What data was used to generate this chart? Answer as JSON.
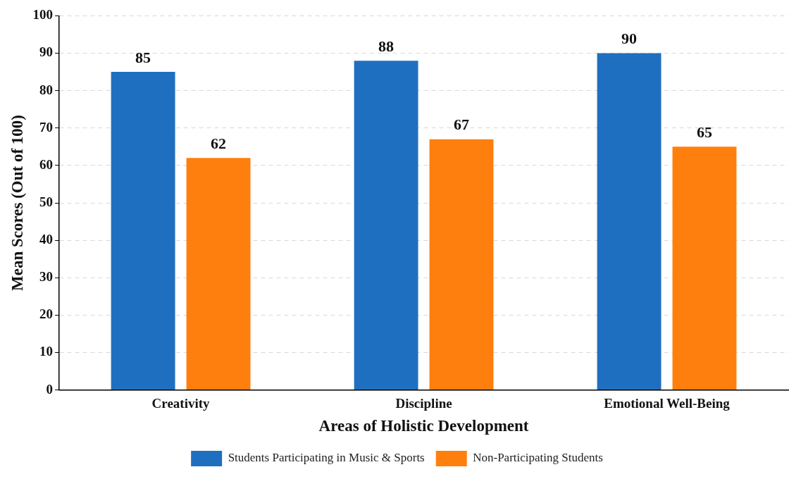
{
  "chart_data": {
    "type": "bar",
    "xlabel": "Areas of Holistic Development",
    "ylabel": "Mean Scores (Out of 100)",
    "categories": [
      "Creativity",
      "Discipline",
      "Emotional Well-Being"
    ],
    "series": [
      {
        "name": "Students Participating in Music & Sports",
        "color": "#1f6fc0",
        "values": [
          85,
          88,
          90
        ]
      },
      {
        "name": "Non-Participating Students",
        "color": "#ff7f0e",
        "values": [
          62,
          67,
          65
        ]
      }
    ],
    "ylim": [
      0,
      100
    ],
    "yticks": [
      0,
      10,
      20,
      30,
      40,
      50,
      60,
      70,
      80,
      90,
      100
    ],
    "grid": "y",
    "legend": "bottom",
    "data_labels": true
  }
}
